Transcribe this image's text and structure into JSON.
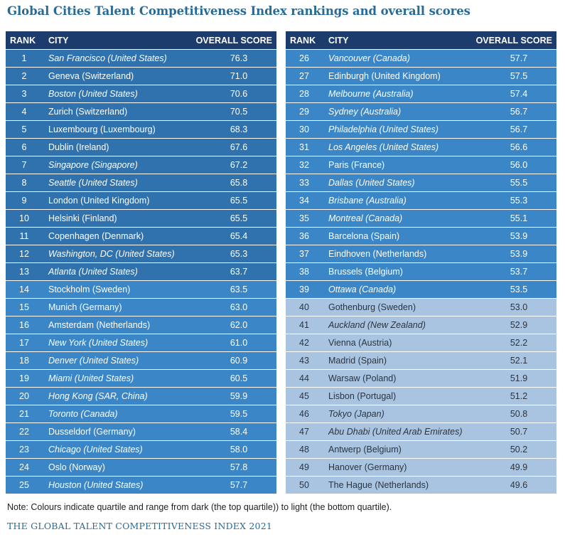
{
  "title": "Global Cities Talent Competitiveness Index rankings and overall scores",
  "headers": {
    "rank": "RANK",
    "city": "CITY",
    "score": "OVERALL SCORE"
  },
  "colors": {
    "header": "#1d3c6e",
    "quartile_top": "#2f72ae",
    "quartile_second": "#3a86c6",
    "quartile_third": "#a9c4e1"
  },
  "rows": [
    {
      "rank": "1",
      "city": "San Francisco (United States)",
      "score": "76.3",
      "italic": true,
      "q": "q1"
    },
    {
      "rank": "2",
      "city": "Geneva (Switzerland)",
      "score": "71.0",
      "italic": false,
      "q": "q1"
    },
    {
      "rank": "3",
      "city": "Boston (United States)",
      "score": "70.6",
      "italic": true,
      "q": "q1"
    },
    {
      "rank": "4",
      "city": "Zurich (Switzerland)",
      "score": "70.5",
      "italic": false,
      "q": "q1"
    },
    {
      "rank": "5",
      "city": "Luxembourg (Luxembourg)",
      "score": "68.3",
      "italic": false,
      "q": "q1"
    },
    {
      "rank": "6",
      "city": "Dublin (Ireland)",
      "score": "67.6",
      "italic": false,
      "q": "q1"
    },
    {
      "rank": "7",
      "city": "Singapore (Singapore)",
      "score": "67.2",
      "italic": true,
      "q": "q1"
    },
    {
      "rank": "8",
      "city": "Seattle (United States)",
      "score": "65.8",
      "italic": true,
      "q": "q1"
    },
    {
      "rank": "9",
      "city": "London (United Kingdom)",
      "score": "65.5",
      "italic": false,
      "q": "q1"
    },
    {
      "rank": "10",
      "city": "Helsinki (Finland)",
      "score": "65.5",
      "italic": false,
      "q": "q1"
    },
    {
      "rank": "11",
      "city": "Copenhagen (Denmark)",
      "score": "65.4",
      "italic": false,
      "q": "q1"
    },
    {
      "rank": "12",
      "city": "Washington, DC (United States)",
      "score": "65.3",
      "italic": true,
      "q": "q1"
    },
    {
      "rank": "13",
      "city": "Atlanta (United States)",
      "score": "63.7",
      "italic": true,
      "q": "q1"
    },
    {
      "rank": "14",
      "city": "Stockholm (Sweden)",
      "score": "63.5",
      "italic": false,
      "q": "q2"
    },
    {
      "rank": "15",
      "city": "Munich (Germany)",
      "score": "63.0",
      "italic": false,
      "q": "q2"
    },
    {
      "rank": "16",
      "city": "Amsterdam (Netherlands)",
      "score": "62.0",
      "italic": false,
      "q": "q2"
    },
    {
      "rank": "17",
      "city": "New York (United States)",
      "score": "61.0",
      "italic": true,
      "q": "q2"
    },
    {
      "rank": "18",
      "city": "Denver (United States)",
      "score": "60.9",
      "italic": true,
      "q": "q2"
    },
    {
      "rank": "19",
      "city": "Miami (United States)",
      "score": "60.5",
      "italic": true,
      "q": "q2"
    },
    {
      "rank": "20",
      "city": "Hong Kong (SAR, China)",
      "score": "59.9",
      "italic": true,
      "q": "q2"
    },
    {
      "rank": "21",
      "city": "Toronto (Canada)",
      "score": "59.5",
      "italic": true,
      "q": "q2"
    },
    {
      "rank": "22",
      "city": "Dusseldorf (Germany)",
      "score": "58.4",
      "italic": false,
      "q": "q2"
    },
    {
      "rank": "23",
      "city": "Chicago (United States)",
      "score": "58.0",
      "italic": true,
      "q": "q2"
    },
    {
      "rank": "24",
      "city": "Oslo (Norway)",
      "score": "57.8",
      "italic": false,
      "q": "q2"
    },
    {
      "rank": "25",
      "city": "Houston (United States)",
      "score": "57.7",
      "italic": true,
      "q": "q2"
    },
    {
      "rank": "26",
      "city": "Vancouver (Canada)",
      "score": "57.7",
      "italic": true,
      "q": "q2"
    },
    {
      "rank": "27",
      "city": "Edinburgh (United Kingdom)",
      "score": "57.5",
      "italic": false,
      "q": "q2"
    },
    {
      "rank": "28",
      "city": "Melbourne (Australia)",
      "score": "57.4",
      "italic": true,
      "q": "q2"
    },
    {
      "rank": "29",
      "city": "Sydney (Australia)",
      "score": "56.7",
      "italic": true,
      "q": "q2"
    },
    {
      "rank": "30",
      "city": "Philadelphia (United States)",
      "score": "56.7",
      "italic": true,
      "q": "q2"
    },
    {
      "rank": "31",
      "city": "Los Angeles (United States)",
      "score": "56.6",
      "italic": true,
      "q": "q2"
    },
    {
      "rank": "32",
      "city": "Paris (France)",
      "score": "56.0",
      "italic": false,
      "q": "q2"
    },
    {
      "rank": "33",
      "city": "Dallas (United States)",
      "score": "55.5",
      "italic": true,
      "q": "q2"
    },
    {
      "rank": "34",
      "city": "Brisbane (Australia)",
      "score": "55.3",
      "italic": true,
      "q": "q2"
    },
    {
      "rank": "35",
      "city": "Montreal (Canada)",
      "score": "55.1",
      "italic": true,
      "q": "q2"
    },
    {
      "rank": "36",
      "city": "Barcelona (Spain)",
      "score": "53.9",
      "italic": false,
      "q": "q2"
    },
    {
      "rank": "37",
      "city": "Eindhoven (Netherlands)",
      "score": "53.9",
      "italic": false,
      "q": "q2"
    },
    {
      "rank": "38",
      "city": "Brussels (Belgium)",
      "score": "53.7",
      "italic": false,
      "q": "q2"
    },
    {
      "rank": "39",
      "city": "Ottawa (Canada)",
      "score": "53.5",
      "italic": true,
      "q": "q2"
    },
    {
      "rank": "40",
      "city": "Gothenburg (Sweden)",
      "score": "53.0",
      "italic": false,
      "q": "q3"
    },
    {
      "rank": "41",
      "city": "Auckland (New Zealand)",
      "score": "52.9",
      "italic": true,
      "q": "q3"
    },
    {
      "rank": "42",
      "city": "Vienna (Austria)",
      "score": "52.2",
      "italic": false,
      "q": "q3"
    },
    {
      "rank": "43",
      "city": "Madrid (Spain)",
      "score": "52.1",
      "italic": false,
      "q": "q3"
    },
    {
      "rank": "44",
      "city": "Warsaw (Poland)",
      "score": "51.9",
      "italic": false,
      "q": "q3"
    },
    {
      "rank": "45",
      "city": "Lisbon (Portugal)",
      "score": "51.2",
      "italic": false,
      "q": "q3"
    },
    {
      "rank": "46",
      "city": "Tokyo (Japan)",
      "score": "50.8",
      "italic": true,
      "q": "q3"
    },
    {
      "rank": "47",
      "city": "Abu Dhabi (United Arab Emirates)",
      "score": "50.7",
      "italic": true,
      "q": "q3"
    },
    {
      "rank": "48",
      "city": "Antwerp (Belgium)",
      "score": "50.2",
      "italic": false,
      "q": "q3"
    },
    {
      "rank": "49",
      "city": "Hanover (Germany)",
      "score": "49.9",
      "italic": false,
      "q": "q3"
    },
    {
      "rank": "50",
      "city": "The Hague (Netherlands)",
      "score": "49.6",
      "italic": false,
      "q": "q3"
    }
  ],
  "note": "Note: Colours indicate quartile and range from dark (the top quartile)) to light (the bottom quartile).",
  "footer": "THE GLOBAL TALENT COMPETITIVENESS INDEX 2021"
}
